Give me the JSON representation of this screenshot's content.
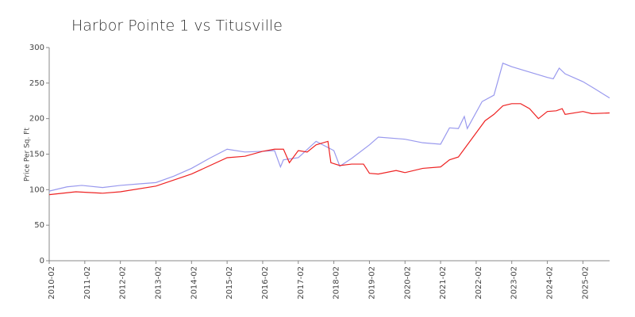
{
  "chart_data": {
    "type": "line",
    "title": "Harbor Pointe 1 vs Titusville",
    "ylabel": "Price Per Sq. Ft",
    "xlim": [
      "2010-02",
      "2025-11"
    ],
    "xticks": [
      "2010-02",
      "2011-02",
      "2012-02",
      "2013-02",
      "2014-02",
      "2015-02",
      "2016-02",
      "2017-02",
      "2018-02",
      "2019-02",
      "2020-02",
      "2021-02",
      "2022-02",
      "2023-02",
      "2024-02",
      "2025-02"
    ],
    "ylim": [
      0,
      300
    ],
    "yticks": [
      0,
      50,
      100,
      150,
      200,
      250,
      300
    ],
    "series": [
      {
        "color": "#9999ee",
        "x": [
          "2010-02",
          "2010-08",
          "2011-01",
          "2011-08",
          "2012-02",
          "2012-08",
          "2013-02",
          "2013-08",
          "2014-02",
          "2014-08",
          "2015-02",
          "2015-08",
          "2016-02",
          "2016-06",
          "2016-08",
          "2016-09",
          "2017-02",
          "2017-08",
          "2018-02",
          "2018-04",
          "2018-08",
          "2019-02",
          "2019-05",
          "2020-02",
          "2020-08",
          "2021-02",
          "2021-05",
          "2021-08",
          "2021-10",
          "2021-11",
          "2022-04",
          "2022-08",
          "2022-11",
          "2023-02",
          "2024-02",
          "2024-04",
          "2024-06",
          "2024-08",
          "2025-02",
          "2025-06",
          "2025-11"
        ],
        "values": [
          98,
          104,
          106,
          103,
          106,
          108,
          110,
          119,
          130,
          144,
          157,
          153,
          154,
          155,
          132,
          142,
          145,
          168,
          155,
          133,
          144,
          163,
          174,
          171,
          166,
          164,
          187,
          186,
          203,
          186,
          224,
          233,
          278,
          273,
          258,
          256,
          271,
          263,
          252,
          242,
          229
        ]
      },
      {
        "color": "#ee2222",
        "x": [
          "2010-02",
          "2010-11",
          "2011-08",
          "2012-02",
          "2013-02",
          "2014-02",
          "2015-02",
          "2015-08",
          "2016-02",
          "2016-06",
          "2016-09",
          "2016-11",
          "2017-02",
          "2017-05",
          "2017-08",
          "2017-12",
          "2018-01",
          "2018-04",
          "2018-08",
          "2018-12",
          "2019-02",
          "2019-05",
          "2019-11",
          "2020-02",
          "2020-08",
          "2021-02",
          "2021-05",
          "2021-08",
          "2022-02",
          "2022-05",
          "2022-08",
          "2022-11",
          "2023-02",
          "2023-05",
          "2023-08",
          "2023-11",
          "2024-02",
          "2024-05",
          "2024-07",
          "2024-08",
          "2025-02",
          "2025-05",
          "2025-11"
        ],
        "values": [
          93,
          97,
          95,
          97,
          105,
          122,
          145,
          147,
          154,
          157,
          157,
          138,
          155,
          153,
          163,
          168,
          138,
          134,
          136,
          136,
          123,
          122,
          127,
          124,
          130,
          132,
          142,
          146,
          180,
          197,
          206,
          218,
          221,
          221,
          214,
          200,
          210,
          211,
          214,
          206,
          210,
          207,
          208
        ]
      }
    ]
  }
}
